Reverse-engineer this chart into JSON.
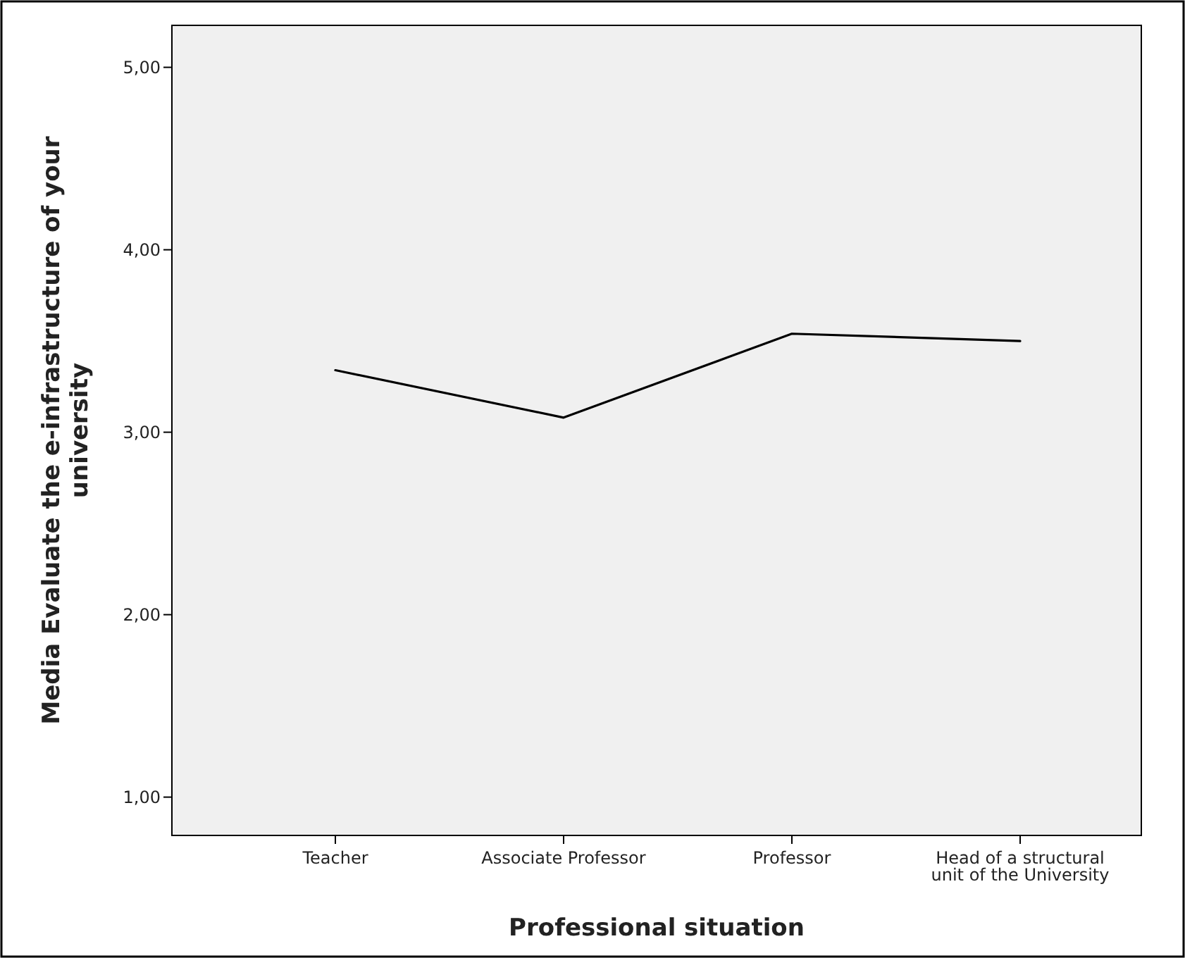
{
  "chart_data": {
    "type": "line",
    "xlabel": "Professional situation",
    "ylabel": "Media Evaluate the e-infrastructure of your university",
    "categories": [
      "Teacher",
      "Associate Professor",
      "Professor",
      "Head of a structural unit of the University"
    ],
    "series": [
      {
        "color": "#000000",
        "values": [
          3.34,
          3.08,
          3.54,
          3.5
        ]
      }
    ],
    "ylim": [
      0.79,
      5.23
    ],
    "yticks": [
      {
        "value": 1,
        "label": "1,00"
      },
      {
        "value": 2,
        "label": "2,00"
      },
      {
        "value": 3,
        "label": "3,00"
      },
      {
        "value": 4,
        "label": "4,00"
      },
      {
        "value": 5,
        "label": "5,00"
      }
    ],
    "marker": "none",
    "line_style": "solid"
  }
}
